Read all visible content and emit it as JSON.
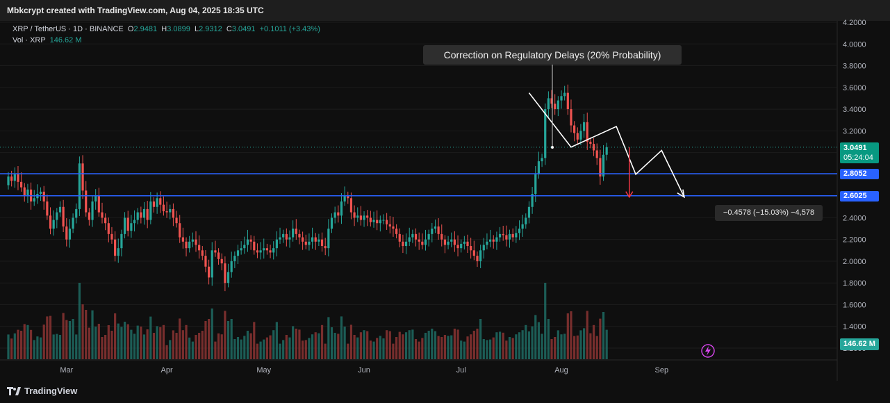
{
  "header": {
    "attribution": "Mbkcrypt created with TradingView.com, Aug 04, 2025 18:35 UTC"
  },
  "legend": {
    "symbol": "XRP / TetherUS · 1D · BINANCE",
    "open_label": "O",
    "open": "2.9481",
    "high_label": "H",
    "high": "3.0899",
    "low_label": "L",
    "low": "2.9312",
    "close_label": "C",
    "close": "3.0491",
    "change": "+0.1011 (+3.43%)",
    "vol_label": "Vol · XRP",
    "vol_value": "146.62 M"
  },
  "annotations": {
    "scenario": "Correction on Regulatory Delays (20% Probability)",
    "measure": "−0.4578 (−15.03%) −4,578"
  },
  "price_tags": {
    "last_price": "3.0491",
    "countdown": "05:24:04",
    "support_1": "2.8052",
    "support_2": "2.6025",
    "volume": "146.62 M"
  },
  "branding": {
    "logo_text": "TradingView"
  },
  "colors": {
    "up": "#26a69a",
    "down": "#ef5350",
    "level": "#2962ff",
    "path": "#ffffff"
  },
  "chart_data": {
    "type": "candlestick",
    "symbol": "XRP / TetherUS",
    "interval": "1D",
    "exchange": "BINANCE",
    "y_ticks": [
      "4.2000",
      "4.0000",
      "3.8000",
      "3.6000",
      "3.4000",
      "3.2000",
      "3.0000",
      "2.8000",
      "2.6000",
      "2.4000",
      "2.2000",
      "2.0000",
      "1.8000",
      "1.6000",
      "1.4000",
      "1.2000"
    ],
    "ylim": [
      1.2,
      4.2
    ],
    "x_ticks": [
      "Mar",
      "Apr",
      "May",
      "Jun",
      "Jul",
      "Aug",
      "Sep"
    ],
    "horizontal_levels": [
      2.8052,
      2.6025
    ],
    "last_close": 3.0491,
    "projection_path": [
      {
        "date": "2025-07-22",
        "price": 3.55
      },
      {
        "date": "2025-08-04",
        "price": 3.05
      },
      {
        "date": "2025-08-18",
        "price": 3.24
      },
      {
        "date": "2025-08-24",
        "price": 2.8
      },
      {
        "date": "2025-09-01",
        "price": 3.02
      },
      {
        "date": "2025-09-08",
        "price": 2.59
      }
    ],
    "measure_arrow": {
      "date": "2025-08-22",
      "from": 3.05,
      "to": 2.59,
      "change": "−0.4578 (−15.03%)"
    },
    "candles_close": [
      2.78,
      2.74,
      2.8,
      2.73,
      2.68,
      2.6,
      2.66,
      2.55,
      2.58,
      2.62,
      2.64,
      2.55,
      2.42,
      2.3,
      2.38,
      2.45,
      2.5,
      2.32,
      2.2,
      2.3,
      2.4,
      2.48,
      2.9,
      2.65,
      2.45,
      2.38,
      2.55,
      2.6,
      2.45,
      2.4,
      2.35,
      2.25,
      2.2,
      2.05,
      2.12,
      2.25,
      2.4,
      2.28,
      2.35,
      2.38,
      2.45,
      2.4,
      2.48,
      2.38,
      2.55,
      2.5,
      2.58,
      2.52,
      2.46,
      2.45,
      2.48,
      2.4,
      2.35,
      2.22,
      2.18,
      2.12,
      2.18,
      2.2,
      2.15,
      2.1,
      2.05,
      1.95,
      1.85,
      2.1,
      2.08,
      2.02,
      1.98,
      1.8,
      1.9,
      2.0,
      2.05,
      2.1,
      2.12,
      2.15,
      2.2,
      2.18,
      2.1,
      2.08,
      2.1,
      2.12,
      2.1,
      2.08,
      2.12,
      2.2,
      2.22,
      2.25,
      2.2,
      2.22,
      2.3,
      2.25,
      2.22,
      2.18,
      2.15,
      2.18,
      2.22,
      2.18,
      2.2,
      2.14,
      2.12,
      2.3,
      2.4,
      2.45,
      2.42,
      2.55,
      2.6,
      2.58,
      2.45,
      2.4,
      2.42,
      2.38,
      2.42,
      2.4,
      2.36,
      2.38,
      2.35,
      2.38,
      2.38,
      2.34,
      2.32,
      2.3,
      2.25,
      2.18,
      2.14,
      2.18,
      2.22,
      2.25,
      2.2,
      2.18,
      2.15,
      2.2,
      2.25,
      2.3,
      2.32,
      2.25,
      2.2,
      2.15,
      2.18,
      2.2,
      2.15,
      2.12,
      2.16,
      2.18,
      2.14,
      2.1,
      2.05,
      2.0,
      2.1,
      2.15,
      2.18,
      2.2,
      2.18,
      2.22,
      2.25,
      2.24,
      2.2,
      2.25,
      2.22,
      2.26,
      2.3,
      2.34,
      2.4,
      2.5,
      2.62,
      2.8,
      2.92,
      2.95,
      3.4,
      3.5,
      3.45,
      3.4,
      3.48,
      3.52,
      3.55,
      3.4,
      3.25,
      3.18,
      3.12,
      3.2,
      3.28,
      3.1,
      3.08,
      3.02,
      2.95,
      2.78,
      2.98,
      3.05
    ]
  }
}
